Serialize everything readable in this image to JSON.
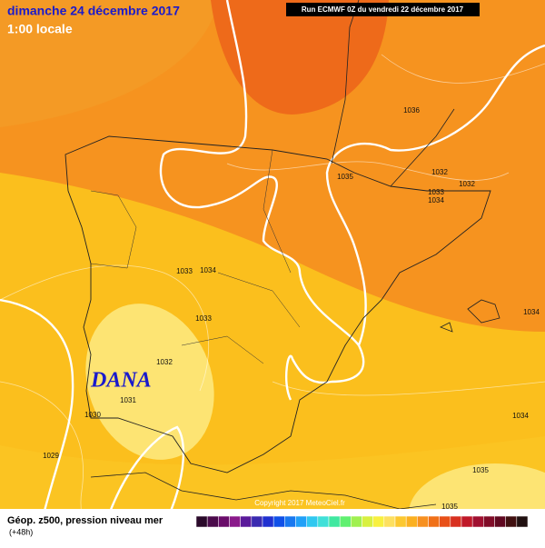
{
  "header": {
    "title": "dimanche 24 décembre 2017",
    "subtitle": "1:00 locale",
    "run": "Run ECMWF 0Z du vendredi 22 décembre 2017"
  },
  "map": {
    "annotation": "DANA",
    "pressure_labels": [
      "1036",
      "1035",
      "1032",
      "1032",
      "1033",
      "1034",
      "1033",
      "1034",
      "1033",
      "1032",
      "1031",
      "1030",
      "1029",
      "1034",
      "1034",
      "1035",
      "1035"
    ],
    "copyright": "Copyright 2017 MeteoCiel.fr"
  },
  "footer": {
    "legend_title": "Géop. z500, pression niveau mer",
    "lead_time": "(+48h)"
  }
}
